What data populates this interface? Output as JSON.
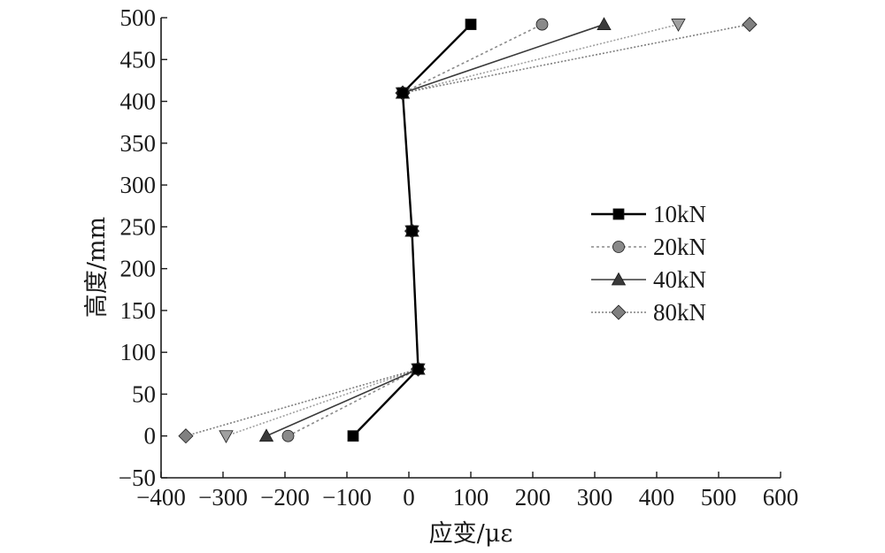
{
  "chart_data": {
    "type": "line",
    "xlabel": "应变/με",
    "ylabel": "高度/mm",
    "xlim": [
      -400,
      600
    ],
    "ylim": [
      -50,
      500
    ],
    "xticks": [
      -400,
      -300,
      -200,
      -100,
      0,
      100,
      200,
      300,
      400,
      500,
      600
    ],
    "yticks": [
      -50,
      0,
      50,
      100,
      150,
      200,
      250,
      300,
      350,
      400,
      450,
      500
    ],
    "xtick_labels": [
      "−400",
      "−300",
      "−200",
      "−100",
      "0",
      "100",
      "200",
      "300",
      "400",
      "500",
      "600"
    ],
    "ytick_labels": [
      "−50",
      "0",
      "50",
      "100",
      "150",
      "200",
      "250",
      "300",
      "350",
      "400",
      "450",
      "500"
    ],
    "grid": false,
    "legend_position": "right",
    "series": [
      {
        "name": "10kN",
        "marker": "square",
        "color": "#000000",
        "dash": "",
        "x": [
          -90,
          15,
          5,
          -10,
          100
        ],
        "y": [
          0,
          80,
          245,
          410,
          492
        ]
      },
      {
        "name": "20kN",
        "marker": "circle",
        "color": "#8a8a8a",
        "dash": "3,3",
        "x": [
          -195,
          15,
          5,
          -10,
          215
        ],
        "y": [
          0,
          80,
          245,
          410,
          492
        ]
      },
      {
        "name": "40kN",
        "marker": "triangle",
        "color": "#3a3a3a",
        "dash": "",
        "x": [
          -230,
          15,
          5,
          -10,
          315
        ],
        "y": [
          0,
          80,
          245,
          410,
          492
        ]
      },
      {
        "name": "80kN",
        "marker": "diamond",
        "color": "#808080",
        "dash": "2,2",
        "x": [
          -360,
          15,
          5,
          -10,
          550
        ],
        "y": [
          0,
          80,
          245,
          410,
          492
        ]
      },
      {
        "name": "",
        "marker": "triangle-down",
        "color": "#a0a0a0",
        "dash": "2,2",
        "x": [
          -295,
          15,
          5,
          -10,
          435
        ],
        "y": [
          0,
          80,
          245,
          410,
          492
        ]
      }
    ]
  }
}
